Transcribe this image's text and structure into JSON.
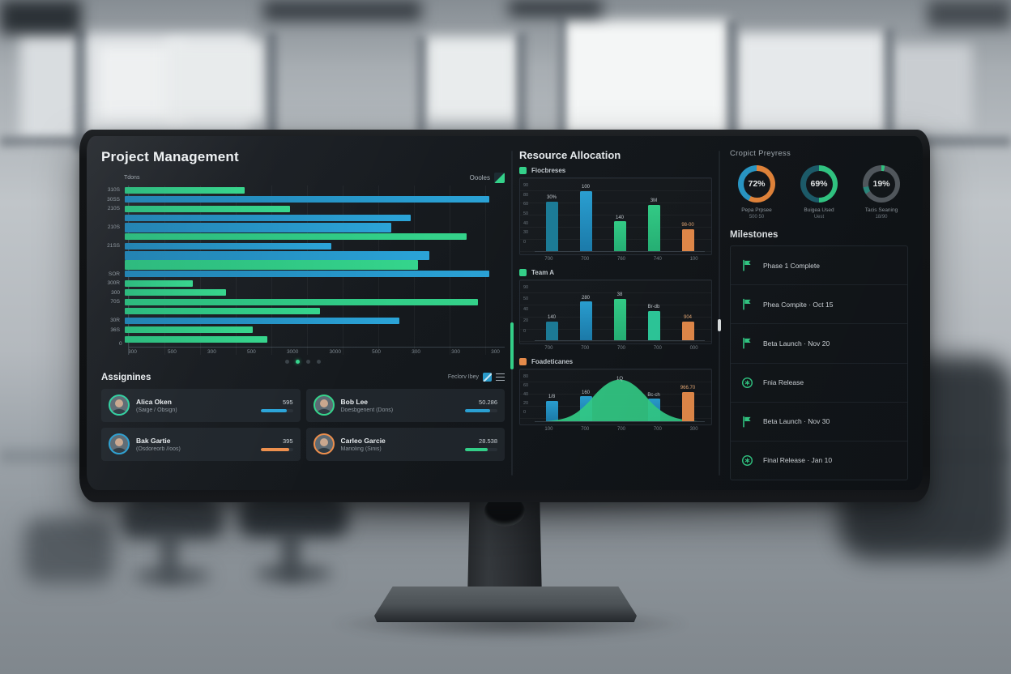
{
  "colors": {
    "green": "#35d58c",
    "green_dark": "#27b87a",
    "green2": "#2fd0a0",
    "blue": "#2ba4d8",
    "blue_dark": "#1c7fb0",
    "teal": "#1d7f9b",
    "orange": "#ed8f4d",
    "panel_bg": "#14181c",
    "card_bg": "#20262c"
  },
  "left": {
    "title": "Project Management",
    "axis_title": "Tdons",
    "corner_label": "Oooles",
    "chart": {
      "bars": [
        {
          "label": "310S",
          "w": 32,
          "c": "green"
        },
        {
          "label": "30SS",
          "w": 97,
          "c": "blue"
        },
        {
          "label": "210S",
          "w": 44,
          "c": "green"
        },
        {
          "label": "",
          "w": 76,
          "c": "blue"
        },
        {
          "label": "210S",
          "w": 71,
          "c": "blue",
          "t": 1
        },
        {
          "label": "",
          "w": 91,
          "c": "green"
        },
        {
          "label": "21SS",
          "w": 55,
          "c": "blue"
        },
        {
          "label": "",
          "w": 81,
          "c": "blue",
          "t": 1
        },
        {
          "label": "",
          "w": 78,
          "c": "green",
          "t": 1
        },
        {
          "label": "SOR",
          "w": 97,
          "c": "blue"
        },
        {
          "label": "300R",
          "w": 18,
          "c": "green"
        },
        {
          "label": "300",
          "w": 27,
          "c": "green"
        },
        {
          "label": "70S",
          "w": 94,
          "c": "green"
        },
        {
          "label": "",
          "w": 52,
          "c": "green"
        },
        {
          "label": "30R",
          "w": 73,
          "c": "blue"
        },
        {
          "label": "36S",
          "w": 34,
          "c": "green"
        },
        {
          "label": "",
          "w": 38,
          "c": "green"
        }
      ],
      "zero_label": "0",
      "x_ticks": [
        "300",
        "500",
        "300",
        "500",
        "3000",
        "3000",
        "500",
        "300",
        "300",
        "300"
      ],
      "dots": [
        false,
        true,
        false,
        false
      ]
    },
    "assignees": {
      "title": "Assignines",
      "legend_label": "Feclorv Ibey",
      "cards": [
        {
          "name": "Alica Oken",
          "role": "(Saige / Obsign)",
          "value": "595",
          "bar": "blue",
          "pct": 80,
          "ring": "#2fd0a0"
        },
        {
          "name": "Bob Lee",
          "role": "Doesbgenent (Dons)",
          "value": "50.286",
          "bar": "blue",
          "pct": 78,
          "ring": "#35d58c"
        },
        {
          "name": "Bak Gartie",
          "role": "(Osdoreorb //oos)",
          "value": "395",
          "bar": "orange",
          "pct": 88,
          "ring": "#2b9fd0"
        },
        {
          "name": "Carleo Garcie",
          "role": "Marioling (Sinis)",
          "value": "28.538",
          "bar": "green",
          "pct": 70,
          "ring": "#ed8f4d"
        }
      ]
    }
  },
  "middle": {
    "title": "Resource Allocation",
    "charts": [
      {
        "legend": "Fiocbreses",
        "legend_color": "green",
        "h": 96,
        "y_ticks": [
          "90",
          "80",
          "60",
          "50",
          "40",
          "30",
          "0"
        ],
        "bars": [
          {
            "label": "30%",
            "v": 75,
            "c": "teal"
          },
          {
            "label": "100",
            "v": 100,
            "c": "blue"
          },
          {
            "label": "140",
            "v": 45,
            "c": "green"
          },
          {
            "label": "3M",
            "v": 70,
            "c": "green"
          },
          {
            "label": "98-00",
            "v": 33,
            "c": "orange"
          }
        ],
        "x_ticks": [
          "700",
          "700",
          "760",
          "740",
          "100"
        ],
        "curve": false
      },
      {
        "legend": "Team A",
        "legend_color": "green",
        "h": 80,
        "y_ticks": [
          "90",
          "50",
          "40",
          "20",
          "0"
        ],
        "bars": [
          {
            "label": "140",
            "v": 35,
            "c": "teal"
          },
          {
            "label": "280",
            "v": 72,
            "c": "blue"
          },
          {
            "label": "38",
            "v": 78,
            "c": "green"
          },
          {
            "label": "Br-db",
            "v": 55,
            "c": "green2"
          },
          {
            "label": "904",
            "v": 35,
            "c": "orange"
          }
        ],
        "x_ticks": [
          "700",
          "700",
          "700",
          "700",
          "000"
        ],
        "curve": false
      },
      {
        "legend": "Foadeticanes",
        "legend_color": "orange",
        "h": 70,
        "y_ticks": [
          "80",
          "60",
          "40",
          "20",
          "0"
        ],
        "bars": [
          {
            "label": "1/8",
            "v": 45,
            "c": "blue"
          },
          {
            "label": "160",
            "v": 55,
            "c": "blue"
          },
          {
            "label": "1Q",
            "v": 0,
            "c": "none"
          },
          {
            "label": "Bc-ch",
            "v": 50,
            "c": "blue"
          },
          {
            "label": "966.70",
            "v": 65,
            "c": "orange",
            "z": 1
          }
        ],
        "x_ticks": [
          "100",
          "700",
          "700",
          "700",
          "300"
        ],
        "curve": true
      }
    ]
  },
  "right": {
    "title": "Cropict Preyress",
    "gauges": [
      {
        "percent": "72%",
        "label": "Pepa Prpsee",
        "sub": "500 50",
        "segments": [
          {
            "c": "#f08c3e",
            "a": 0,
            "b": 57
          },
          {
            "c": "#2b9fd0",
            "a": 57,
            "b": 100
          }
        ]
      },
      {
        "percent": "69%",
        "label": "Buigea Used",
        "sub": "Uest",
        "segments": [
          {
            "c": "#35d58c",
            "a": 0,
            "b": 50
          },
          {
            "c": "#1f6272",
            "a": 50,
            "b": 100
          }
        ]
      },
      {
        "percent": "19%",
        "label": "Tacis Seaning",
        "sub": "18/90",
        "segments": [
          {
            "c": "#35d58c",
            "a": 0,
            "b": 3
          },
          {
            "c": "#596066",
            "a": 3,
            "b": 66
          },
          {
            "c": "#2f9487",
            "a": 66,
            "b": 72
          },
          {
            "c": "#596066",
            "a": 72,
            "b": 100
          }
        ]
      }
    ],
    "milestones": {
      "title": "Milestones",
      "items": [
        {
          "icon": "flag",
          "text": "Phase 1 Complete"
        },
        {
          "icon": "flag",
          "text": "Phea Compite · Oct 15"
        },
        {
          "icon": "flag",
          "text": "Beta Launch · Nov 20"
        },
        {
          "icon": "release",
          "text": "Fnia Release"
        },
        {
          "icon": "flag",
          "text": "Beta Launch · Nov 30"
        },
        {
          "icon": "release",
          "text": "Final Release · Jan 10"
        }
      ]
    }
  },
  "chart_data": [
    {
      "type": "bar",
      "orientation": "horizontal",
      "title": "Project Management",
      "categories": [
        "310S",
        "30SS",
        "210S",
        "",
        "210S",
        "",
        "21SS",
        "",
        "",
        "SOR",
        "300R",
        "300",
        "70S",
        "",
        "30R",
        "36S",
        ""
      ],
      "values": [
        32,
        97,
        44,
        76,
        71,
        91,
        55,
        81,
        78,
        97,
        18,
        27,
        94,
        52,
        73,
        34,
        38
      ],
      "xlabel": "",
      "ylabel": "Tdons",
      "xlim": [
        0,
        100
      ],
      "grid": true
    },
    {
      "type": "bar",
      "title": "Fiocbreses",
      "categories": [
        "700",
        "700",
        "760",
        "740",
        "100"
      ],
      "values": [
        75,
        100,
        45,
        70,
        33
      ],
      "ylim": [
        0,
        100
      ]
    },
    {
      "type": "bar",
      "title": "Team A",
      "categories": [
        "700",
        "700",
        "700",
        "700",
        "000"
      ],
      "values": [
        35,
        72,
        78,
        55,
        35
      ],
      "ylim": [
        0,
        90
      ]
    },
    {
      "type": "bar",
      "title": "Foadeticanes",
      "categories": [
        "100",
        "700",
        "700",
        "700",
        "300"
      ],
      "values": [
        45,
        55,
        85,
        50,
        65
      ],
      "note": "green area curve peak at center",
      "ylim": [
        0,
        80
      ]
    },
    {
      "type": "pie",
      "title": "Cropict Preyress",
      "slices": [
        {
          "label": "Pepa Prpsee",
          "value": 72
        },
        {
          "label": "Buigea Used",
          "value": 69
        },
        {
          "label": "Tacis Seaning",
          "value": 19
        }
      ]
    }
  ]
}
